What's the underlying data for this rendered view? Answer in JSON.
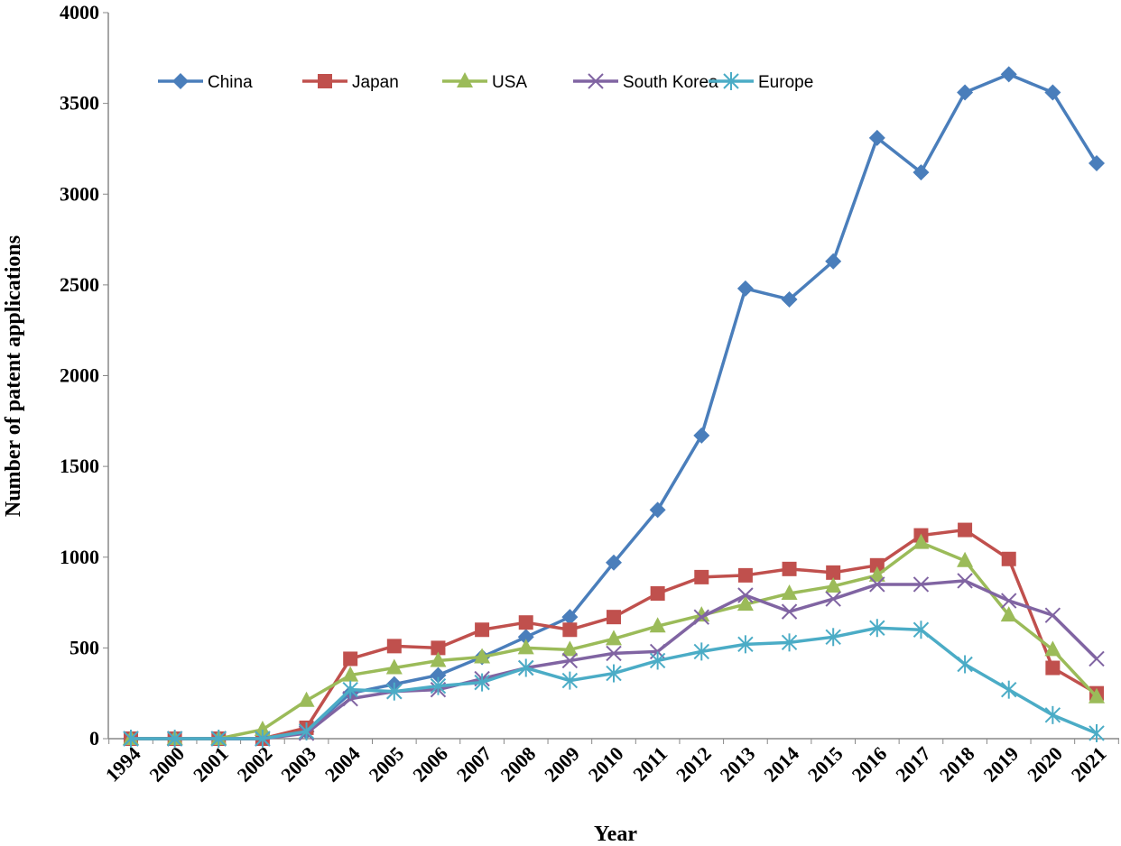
{
  "chart_data": {
    "type": "line",
    "xlabel": "Year",
    "ylabel": "Number of patent applications",
    "ylim": [
      0,
      4000
    ],
    "yticks": [
      0,
      500,
      1000,
      1500,
      2000,
      2500,
      3000,
      3500,
      4000
    ],
    "grid": false,
    "legend_placement": "top-left, horizontal",
    "categories": [
      "1994",
      "2000",
      "2001",
      "2002",
      "2003",
      "2004",
      "2005",
      "2006",
      "2007",
      "2008",
      "2009",
      "2010",
      "2011",
      "2012",
      "2013",
      "2014",
      "2015",
      "2016",
      "2017",
      "2018",
      "2019",
      "2020",
      "2021"
    ],
    "series": [
      {
        "name": "China",
        "color": "#4a7ebb",
        "marker": "diamond",
        "values": [
          0,
          0,
          0,
          0,
          40,
          250,
          300,
          350,
          450,
          560,
          670,
          970,
          1260,
          1670,
          2480,
          2420,
          2630,
          3310,
          3120,
          3560,
          3660,
          3560,
          3170
        ]
      },
      {
        "name": "Japan",
        "color": "#c0504d",
        "marker": "square",
        "values": [
          0,
          0,
          0,
          0,
          60,
          440,
          510,
          500,
          600,
          640,
          600,
          670,
          800,
          890,
          900,
          935,
          915,
          955,
          1120,
          1150,
          990,
          390,
          250
        ]
      },
      {
        "name": "USA",
        "color": "#9bbb59",
        "marker": "triangle",
        "values": [
          0,
          0,
          0,
          50,
          210,
          350,
          390,
          430,
          450,
          500,
          490,
          550,
          620,
          680,
          740,
          800,
          840,
          900,
          1080,
          980,
          680,
          490,
          230
        ]
      },
      {
        "name": "South Korea",
        "color": "#8064a2",
        "marker": "x",
        "values": [
          0,
          0,
          0,
          0,
          30,
          220,
          260,
          270,
          330,
          390,
          430,
          470,
          480,
          670,
          790,
          700,
          770,
          850,
          850,
          870,
          760,
          680,
          440
        ]
      },
      {
        "name": "Europe",
        "color": "#4bacc6",
        "marker": "star",
        "values": [
          0,
          0,
          0,
          0,
          40,
          270,
          260,
          290,
          310,
          390,
          320,
          360,
          430,
          480,
          520,
          530,
          560,
          610,
          600,
          410,
          270,
          130,
          30
        ]
      }
    ]
  }
}
